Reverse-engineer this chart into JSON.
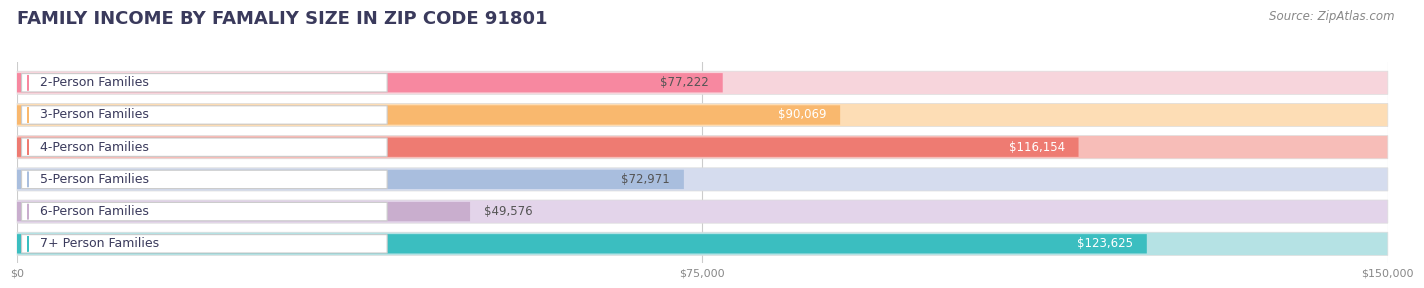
{
  "title": "FAMILY INCOME BY FAMALIY SIZE IN ZIP CODE 91801",
  "source": "Source: ZipAtlas.com",
  "categories": [
    "2-Person Families",
    "3-Person Families",
    "4-Person Families",
    "5-Person Families",
    "6-Person Families",
    "7+ Person Families"
  ],
  "values": [
    77222,
    90069,
    116154,
    72971,
    49576,
    123625
  ],
  "value_labels": [
    "$77,222",
    "$90,069",
    "$116,154",
    "$72,971",
    "$49,576",
    "$123,625"
  ],
  "bar_colors": [
    "#F788A0",
    "#F9B86E",
    "#EE7B72",
    "#A9BEDE",
    "#C9AECE",
    "#3BBEC0"
  ],
  "bar_bg_colors": [
    "#F7D5DC",
    "#FDDDB5",
    "#F7BDB8",
    "#D5DCEE",
    "#E3D4EA",
    "#B5E2E4"
  ],
  "label_colors": [
    "#555555",
    "#ffffff",
    "#ffffff",
    "#555555",
    "#555555",
    "#ffffff"
  ],
  "xlim": [
    0,
    150000
  ],
  "xticks": [
    0,
    75000,
    150000
  ],
  "xtick_labels": [
    "$0",
    "$75,000",
    "$150,000"
  ],
  "background_color": "#ffffff",
  "row_bg_color": "#f0f0f0",
  "title_color": "#3a3a5c",
  "title_fontsize": 13,
  "source_fontsize": 8.5,
  "label_fontsize": 8.5,
  "category_fontsize": 9,
  "inside_threshold": 65000
}
